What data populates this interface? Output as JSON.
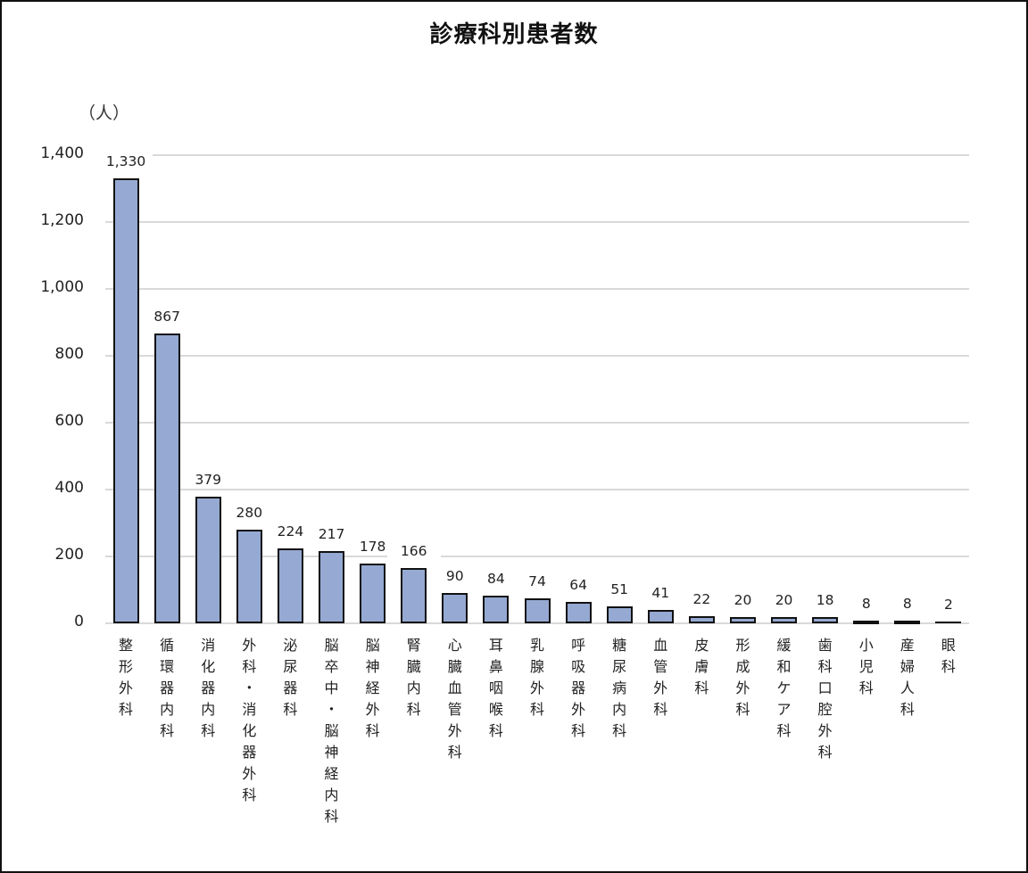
{
  "chart_data": {
    "type": "bar",
    "title": "診療科別患者数",
    "ylabel": "（人）",
    "xlabel": "",
    "ylim": [
      0,
      1400
    ],
    "yticks": [
      "0",
      "200",
      "400",
      "600",
      "800",
      "1,000",
      "1,200",
      "1,400"
    ],
    "grid": true,
    "legend": null,
    "bar_color": "#95a9d2",
    "categories": [
      "整形外科",
      "循環器内科",
      "消化器内科",
      "外科・消化器外科",
      "泌尿器科",
      "脳卒中・脳神経内科",
      "脳神経外科",
      "腎臓内科",
      "心臓血管外科",
      "耳鼻咽喉科",
      "乳腺外科",
      "呼吸器外科",
      "糖尿病内科",
      "血管外科",
      "皮膚科",
      "形成外科",
      "緩和ケア科",
      "歯科口腔外科",
      "小児科",
      "産婦人科",
      "眼科"
    ],
    "values": [
      1330,
      867,
      379,
      280,
      224,
      217,
      178,
      166,
      90,
      84,
      74,
      64,
      51,
      41,
      22,
      20,
      20,
      18,
      8,
      8,
      2
    ],
    "value_labels": [
      "1,330",
      "867",
      "379",
      "280",
      "224",
      "217",
      "178",
      "166",
      "90",
      "84",
      "74",
      "64",
      "51",
      "41",
      "22",
      "20",
      "20",
      "18",
      "8",
      "8",
      "2"
    ]
  }
}
